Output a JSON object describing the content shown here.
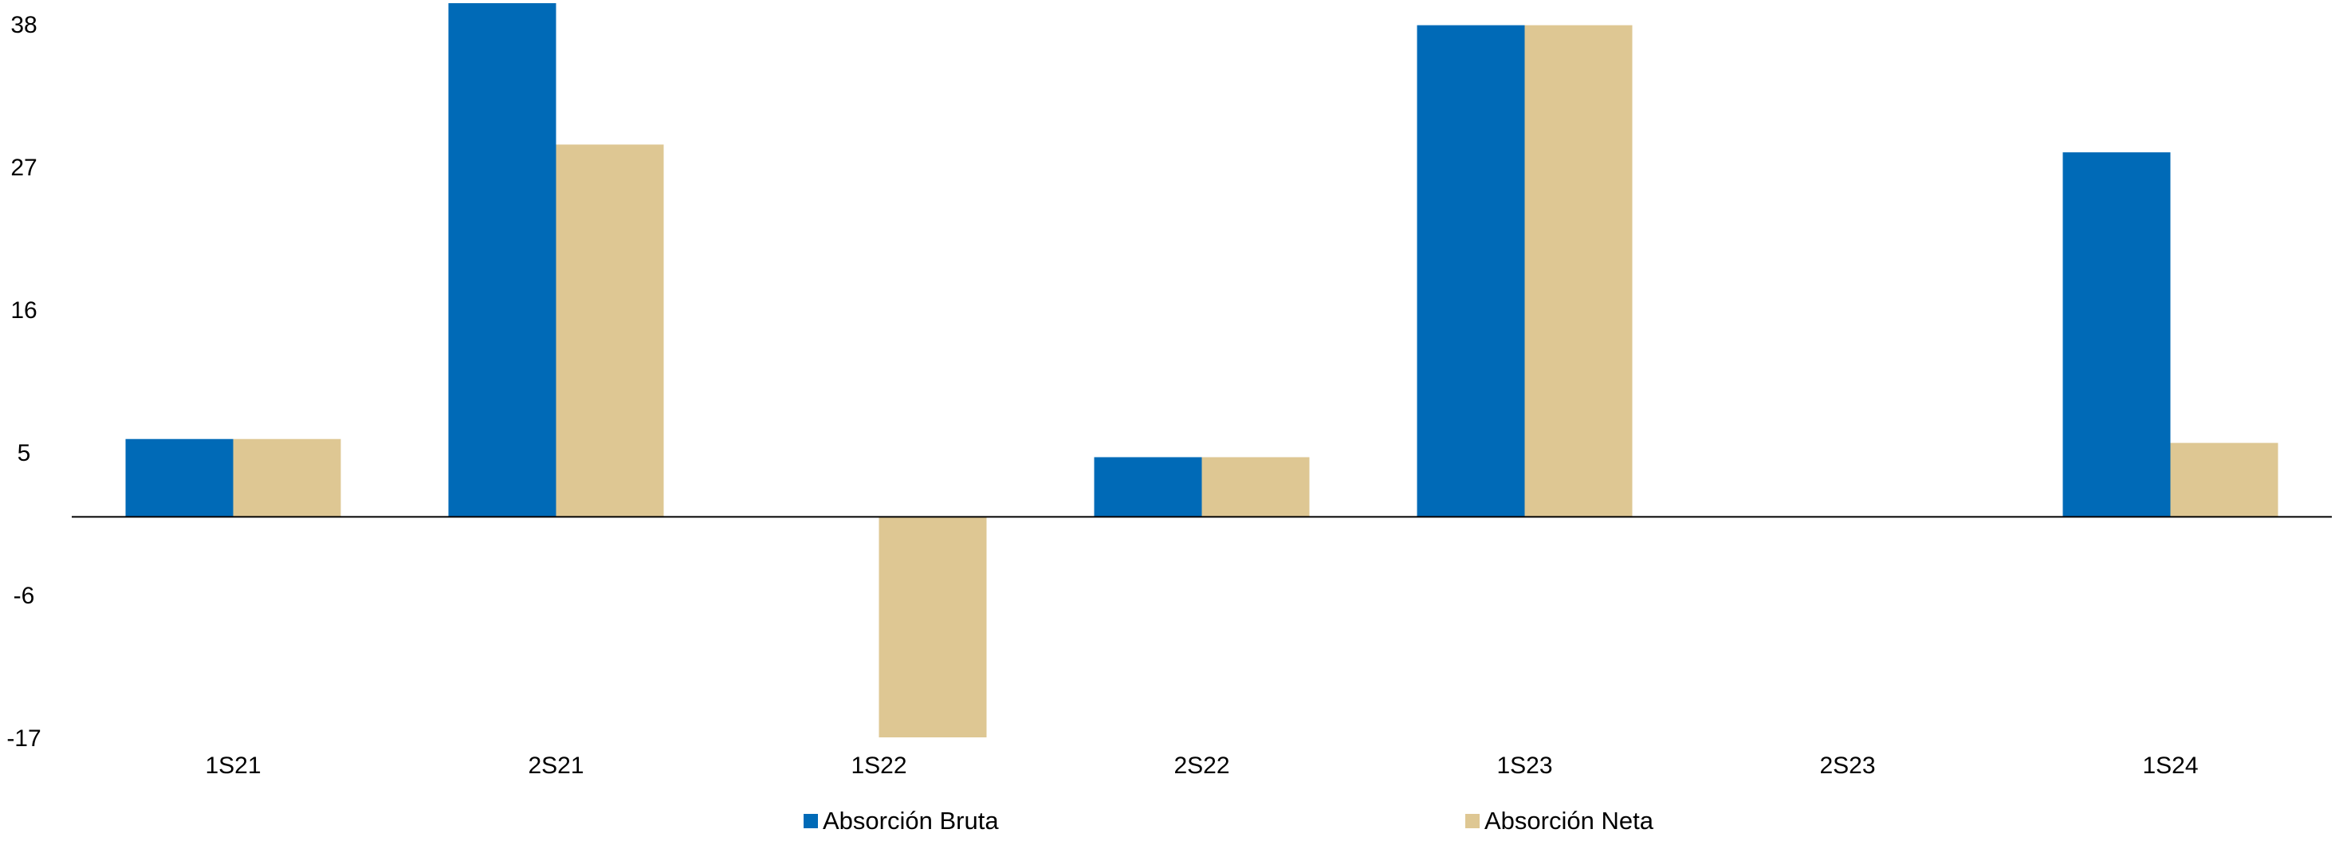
{
  "chart_data": {
    "type": "bar",
    "categories": [
      "1S21",
      "2S21",
      "1S22",
      "2S22",
      "1S23",
      "2S23",
      "1S24"
    ],
    "series": [
      {
        "name": "Absorción Bruta",
        "color": "#006AB7",
        "values": [
          6,
          39.6,
          null,
          4.6,
          37.9,
          null,
          28.1
        ]
      },
      {
        "name": "Absorción Neta",
        "color": "#DEC793",
        "values": [
          6,
          28.7,
          -17,
          4.6,
          37.9,
          null,
          5.7
        ]
      }
    ],
    "yticks": [
      "38",
      "27",
      "16",
      "5",
      "-6",
      "-17"
    ],
    "ylim": [
      -17,
      38
    ],
    "title": "",
    "xlabel": "",
    "ylabel": "",
    "grid": false,
    "legend_position": "bottom"
  }
}
